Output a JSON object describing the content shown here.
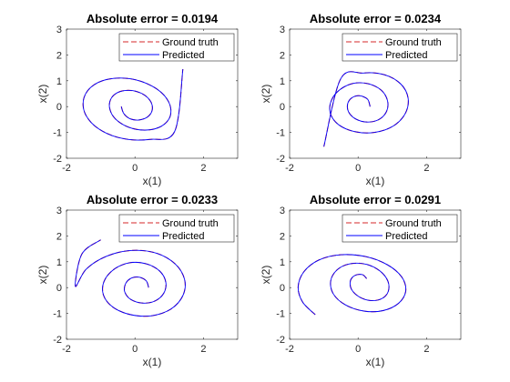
{
  "chart_data": [
    {
      "type": "line",
      "title": "Absolute error = 0.0194",
      "xlabel": "x(1)",
      "ylabel": "x(2)",
      "xlim": [
        -2,
        3
      ],
      "ylim": [
        -2,
        3
      ],
      "xticks": [
        "-2",
        "0",
        "2"
      ],
      "yticks": [
        "3",
        "2",
        "1",
        "0",
        "-1",
        "-2"
      ],
      "legend": {
        "position": "top-right",
        "entries": [
          "Ground truth",
          "Predicted"
        ]
      },
      "series": [
        {
          "name": "Ground truth",
          "color": "#d62728",
          "style": "dashed",
          "x": [
            -0.4,
            -0.33,
            -0.16,
            0.1,
            0.36,
            0.5,
            0.47,
            0.26,
            -0.08,
            -0.44,
            -0.69,
            -0.74,
            -0.57,
            -0.18,
            0.32,
            0.77,
            1.03,
            0.99,
            0.64,
            0.04,
            -0.63,
            -1.19,
            -1.49,
            -1.45,
            -1.06,
            -0.38,
            0.43,
            1.16,
            1.4
          ],
          "y": [
            0.0,
            -0.26,
            -0.46,
            -0.52,
            -0.41,
            -0.15,
            0.17,
            0.46,
            0.62,
            0.58,
            0.33,
            -0.06,
            -0.48,
            -0.8,
            -0.91,
            -0.76,
            -0.37,
            0.17,
            0.68,
            1.03,
            1.09,
            0.85,
            0.34,
            -0.29,
            -0.86,
            -1.23,
            -1.27,
            -0.96,
            1.45
          ]
        },
        {
          "name": "Predicted",
          "color": "#0000ff",
          "style": "solid",
          "x": [
            -0.4,
            -0.33,
            -0.16,
            0.1,
            0.36,
            0.5,
            0.47,
            0.26,
            -0.08,
            -0.44,
            -0.69,
            -0.74,
            -0.57,
            -0.18,
            0.32,
            0.77,
            1.03,
            0.99,
            0.64,
            0.04,
            -0.63,
            -1.19,
            -1.49,
            -1.45,
            -1.06,
            -0.38,
            0.43,
            1.16,
            1.4
          ],
          "y": [
            0.0,
            -0.26,
            -0.46,
            -0.52,
            -0.41,
            -0.15,
            0.17,
            0.46,
            0.62,
            0.58,
            0.33,
            -0.06,
            -0.48,
            -0.8,
            -0.91,
            -0.76,
            -0.37,
            0.17,
            0.68,
            1.03,
            1.09,
            0.85,
            0.34,
            -0.29,
            -0.86,
            -1.23,
            -1.27,
            -0.96,
            1.45
          ]
        }
      ]
    },
    {
      "type": "line",
      "title": "Absolute error = 0.0234",
      "xlabel": "x(1)",
      "ylabel": "x(2)",
      "xlim": [
        -2,
        3
      ],
      "ylim": [
        -2,
        3
      ],
      "xticks": [
        "-2",
        "0",
        "2"
      ],
      "yticks": [
        "3",
        "2",
        "1",
        "0",
        "-1",
        "-2"
      ],
      "legend": {
        "position": "top-right",
        "entries": [
          "Ground truth",
          "Predicted"
        ]
      },
      "series": [
        {
          "name": "Ground truth",
          "color": "#d62728",
          "style": "dashed",
          "x": [
            0.35,
            0.28,
            0.06,
            -0.16,
            -0.3,
            -0.28,
            -0.07,
            0.27,
            0.61,
            0.83,
            0.86,
            0.68,
            0.31,
            -0.13,
            -0.53,
            -0.78,
            -0.81,
            -0.57,
            -0.1,
            0.48,
            1.03,
            1.38,
            1.46,
            1.25,
            0.78,
            0.15,
            -0.51,
            -1.0
          ],
          "y": [
            0.0,
            0.28,
            0.42,
            0.36,
            0.13,
            -0.2,
            -0.48,
            -0.6,
            -0.5,
            -0.19,
            0.23,
            0.63,
            0.88,
            0.9,
            0.66,
            0.24,
            -0.26,
            -0.7,
            -0.97,
            -1.0,
            -0.75,
            -0.26,
            0.33,
            0.87,
            1.23,
            1.3,
            1.07,
            -1.55
          ]
        },
        {
          "name": "Predicted",
          "color": "#0000ff",
          "style": "solid",
          "x": [
            0.35,
            0.28,
            0.06,
            -0.16,
            -0.3,
            -0.28,
            -0.07,
            0.27,
            0.61,
            0.83,
            0.86,
            0.68,
            0.31,
            -0.13,
            -0.53,
            -0.78,
            -0.81,
            -0.57,
            -0.1,
            0.48,
            1.03,
            1.38,
            1.46,
            1.25,
            0.78,
            0.15,
            -0.51,
            -1.0
          ],
          "y": [
            0.0,
            0.28,
            0.42,
            0.36,
            0.13,
            -0.2,
            -0.48,
            -0.6,
            -0.5,
            -0.19,
            0.23,
            0.63,
            0.88,
            0.9,
            0.66,
            0.24,
            -0.26,
            -0.7,
            -0.97,
            -1.0,
            -0.75,
            -0.26,
            0.33,
            0.87,
            1.23,
            1.3,
            1.07,
            -1.55
          ]
        }
      ]
    },
    {
      "type": "line",
      "title": "Absolute error = 0.0233",
      "xlabel": "x(1)",
      "ylabel": "x(2)",
      "xlim": [
        -2,
        3
      ],
      "ylim": [
        -2,
        3
      ],
      "xticks": [
        "-2",
        "0",
        "2"
      ],
      "yticks": [
        "3",
        "2",
        "1",
        "0",
        "-1",
        "-2"
      ],
      "legend": {
        "position": "top-right",
        "entries": [
          "Ground truth",
          "Predicted"
        ]
      },
      "series": [
        {
          "name": "Ground truth",
          "color": "#d62728",
          "style": "dashed",
          "x": [
            0.4,
            0.33,
            0.13,
            -0.1,
            -0.27,
            -0.3,
            -0.12,
            0.22,
            0.58,
            0.84,
            0.9,
            0.72,
            0.33,
            -0.16,
            -0.61,
            -0.9,
            -0.92,
            -0.64,
            -0.12,
            0.49,
            1.05,
            1.4,
            1.45,
            1.18,
            0.63,
            -0.08,
            -0.82,
            -1.42,
            -1.74,
            -1.55,
            -1.0
          ],
          "y": [
            0.0,
            0.26,
            0.4,
            0.37,
            0.16,
            -0.16,
            -0.46,
            -0.6,
            -0.52,
            -0.22,
            0.22,
            0.64,
            0.92,
            0.96,
            0.71,
            0.25,
            -0.29,
            -0.76,
            -1.05,
            -1.09,
            -0.83,
            -0.31,
            0.31,
            0.91,
            1.33,
            1.44,
            1.22,
            0.72,
            0.05,
            1.3,
            1.85
          ]
        },
        {
          "name": "Predicted",
          "color": "#0000ff",
          "style": "solid",
          "x": [
            0.4,
            0.33,
            0.13,
            -0.1,
            -0.27,
            -0.3,
            -0.12,
            0.22,
            0.58,
            0.84,
            0.9,
            0.72,
            0.33,
            -0.16,
            -0.61,
            -0.9,
            -0.92,
            -0.64,
            -0.12,
            0.49,
            1.05,
            1.4,
            1.45,
            1.18,
            0.63,
            -0.08,
            -0.82,
            -1.42,
            -1.74,
            -1.55,
            -1.0
          ],
          "y": [
            0.0,
            0.26,
            0.4,
            0.37,
            0.16,
            -0.16,
            -0.46,
            -0.6,
            -0.52,
            -0.22,
            0.22,
            0.64,
            0.92,
            0.96,
            0.71,
            0.25,
            -0.29,
            -0.76,
            -1.05,
            -1.09,
            -0.83,
            -0.31,
            0.31,
            0.91,
            1.33,
            1.44,
            1.22,
            0.72,
            0.05,
            1.3,
            1.85
          ]
        }
      ]
    },
    {
      "type": "line",
      "title": "Absolute error = 0.0291",
      "xlabel": "x(1)",
      "ylabel": "x(2)",
      "xlim": [
        -2,
        3
      ],
      "ylim": [
        -2,
        3
      ],
      "xticks": [
        "-2",
        "0",
        "2"
      ],
      "yticks": [
        "3",
        "2",
        "1",
        "0",
        "-1",
        "-2"
      ],
      "legend": {
        "position": "top-right",
        "entries": [
          "Ground truth",
          "Predicted"
        ]
      },
      "series": [
        {
          "name": "Ground truth",
          "color": "#d62728",
          "style": "dashed",
          "x": [
            0.25,
            0.13,
            -0.08,
            -0.22,
            -0.2,
            0.02,
            0.36,
            0.69,
            0.88,
            0.87,
            0.64,
            0.24,
            -0.24,
            -0.62,
            -0.8,
            -0.72,
            -0.37,
            0.17,
            0.73,
            1.18,
            1.39,
            1.28,
            0.86,
            0.22,
            -0.5,
            -1.14,
            -1.58,
            -1.75,
            -1.62,
            -1.25
          ],
          "y": [
            0.35,
            0.5,
            0.48,
            0.28,
            -0.05,
            -0.35,
            -0.5,
            -0.43,
            -0.15,
            0.25,
            0.64,
            0.9,
            0.92,
            0.68,
            0.25,
            -0.25,
            -0.67,
            -0.91,
            -0.89,
            -0.61,
            -0.14,
            0.4,
            0.88,
            1.2,
            1.27,
            1.07,
            0.62,
            0.03,
            -0.56,
            -1.05
          ]
        },
        {
          "name": "Predicted",
          "color": "#0000ff",
          "style": "solid",
          "x": [
            0.25,
            0.13,
            -0.08,
            -0.22,
            -0.2,
            0.02,
            0.36,
            0.69,
            0.88,
            0.87,
            0.64,
            0.24,
            -0.24,
            -0.62,
            -0.8,
            -0.72,
            -0.37,
            0.17,
            0.73,
            1.18,
            1.39,
            1.28,
            0.86,
            0.22,
            -0.5,
            -1.14,
            -1.58,
            -1.75,
            -1.62,
            -1.25
          ],
          "y": [
            0.35,
            0.5,
            0.48,
            0.28,
            -0.05,
            -0.35,
            -0.5,
            -0.43,
            -0.15,
            0.25,
            0.64,
            0.9,
            0.92,
            0.68,
            0.25,
            -0.25,
            -0.67,
            -0.91,
            -0.89,
            -0.61,
            -0.14,
            0.4,
            0.88,
            1.2,
            1.27,
            1.07,
            0.62,
            0.03,
            -0.56,
            -1.05
          ]
        }
      ]
    }
  ]
}
